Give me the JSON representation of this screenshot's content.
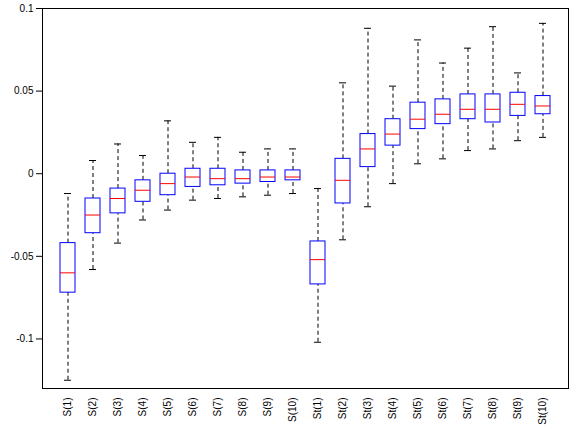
{
  "chart_data": {
    "type": "box",
    "categories": [
      "S(1)",
      "S(2)",
      "S(3)",
      "S(4)",
      "S(5)",
      "S(6)",
      "S(7)",
      "S(8)",
      "S(9)",
      "S(10)",
      "St(1)",
      "St(2)",
      "St(3)",
      "St(4)",
      "St(5)",
      "St(6)",
      "St(7)",
      "St(8)",
      "St(9)",
      "St(10)"
    ],
    "whisker_high": [
      -0.012,
      0.008,
      0.018,
      0.011,
      0.032,
      0.019,
      0.022,
      0.013,
      0.015,
      0.015,
      -0.009,
      0.055,
      0.088,
      0.053,
      0.081,
      0.067,
      0.076,
      0.089,
      0.061,
      0.091
    ],
    "q3": [
      -0.042,
      -0.015,
      -0.009,
      -0.004,
      0.0,
      0.003,
      0.003,
      0.002,
      0.002,
      0.002,
      -0.041,
      0.009,
      0.024,
      0.033,
      0.043,
      0.045,
      0.048,
      0.048,
      0.049,
      0.047
    ],
    "median": [
      -0.06,
      -0.025,
      -0.015,
      -0.01,
      -0.006,
      -0.002,
      -0.003,
      -0.003,
      -0.002,
      -0.002,
      -0.052,
      -0.004,
      0.015,
      0.024,
      0.033,
      0.036,
      0.039,
      0.039,
      0.042,
      0.041
    ],
    "q1": [
      -0.072,
      -0.036,
      -0.024,
      -0.017,
      -0.013,
      -0.008,
      -0.007,
      -0.006,
      -0.005,
      -0.004,
      -0.067,
      -0.018,
      0.004,
      0.017,
      0.027,
      0.03,
      0.033,
      0.031,
      0.035,
      0.036
    ],
    "whisker_low": [
      -0.125,
      -0.058,
      -0.042,
      -0.028,
      -0.022,
      -0.016,
      -0.015,
      -0.014,
      -0.013,
      -0.012,
      -0.102,
      -0.04,
      -0.02,
      -0.006,
      0.006,
      0.009,
      0.014,
      0.015,
      0.02,
      0.022
    ],
    "color": "#0000ff",
    "ylim": [
      -0.13,
      0.1
    ],
    "yticks": [
      -0.1,
      -0.05,
      0,
      0.05,
      0.1
    ]
  }
}
